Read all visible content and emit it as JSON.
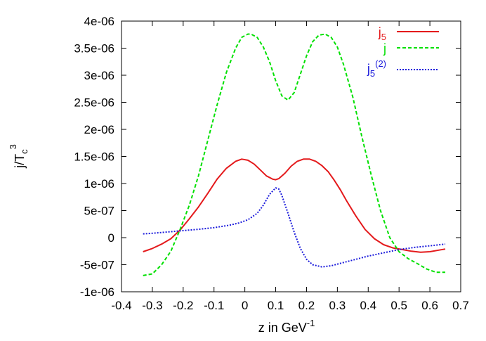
{
  "chart_data": {
    "type": "line",
    "xlabel": "z in GeV",
    "xlabel_sup": "-1",
    "ylabel": "j/T",
    "ylabel_sub": "c",
    "ylabel_sup": "3",
    "xlim": [
      -0.4,
      0.7
    ],
    "ylim": [
      -1e-06,
      4e-06
    ],
    "x_ticks": [
      {
        "value": -0.4,
        "label": "-0.4"
      },
      {
        "value": -0.3,
        "label": "-0.3"
      },
      {
        "value": -0.2,
        "label": "-0.2"
      },
      {
        "value": -0.1,
        "label": "-0.1"
      },
      {
        "value": 0,
        "label": "0"
      },
      {
        "value": 0.1,
        "label": "0.1"
      },
      {
        "value": 0.2,
        "label": "0.2"
      },
      {
        "value": 0.3,
        "label": "0.3"
      },
      {
        "value": 0.4,
        "label": "0.4"
      },
      {
        "value": 0.5,
        "label": "0.5"
      },
      {
        "value": 0.6,
        "label": "0.6"
      },
      {
        "value": 0.7,
        "label": "0.7"
      }
    ],
    "y_ticks": [
      {
        "value": -1e-06,
        "label": "-1e-06"
      },
      {
        "value": -5e-07,
        "label": "-5e-07"
      },
      {
        "value": 0,
        "label": "0"
      },
      {
        "value": 5e-07,
        "label": "5e-07"
      },
      {
        "value": 1e-06,
        "label": "1e-06"
      },
      {
        "value": 1.5e-06,
        "label": "1.5e-06"
      },
      {
        "value": 2e-06,
        "label": "2e-06"
      },
      {
        "value": 2.5e-06,
        "label": "2.5e-06"
      },
      {
        "value": 3e-06,
        "label": "3e-06"
      },
      {
        "value": 3.5e-06,
        "label": "3.5e-06"
      },
      {
        "value": 4e-06,
        "label": "4e-06"
      }
    ],
    "grid": false,
    "legend_position": "top-right",
    "series": [
      {
        "name": "j",
        "name_sub": "5",
        "name_sup": "",
        "color": "#e41a1c",
        "dash": "solid",
        "x": [
          -0.33,
          -0.3,
          -0.27,
          -0.24,
          -0.21,
          -0.18,
          -0.15,
          -0.12,
          -0.09,
          -0.06,
          -0.03,
          -0.01,
          0.01,
          0.03,
          0.05,
          0.07,
          0.09,
          0.1,
          0.11,
          0.13,
          0.15,
          0.17,
          0.19,
          0.21,
          0.23,
          0.25,
          0.27,
          0.29,
          0.31,
          0.33,
          0.36,
          0.39,
          0.42,
          0.45,
          0.48,
          0.51,
          0.54,
          0.57,
          0.6,
          0.63,
          0.65
        ],
        "y": [
          -2.6e-07,
          -2e-07,
          -1.2e-07,
          -2e-08,
          1.4e-07,
          3.5e-07,
          5.7e-07,
          8.2e-07,
          1.08e-06,
          1.28e-06,
          1.41e-06,
          1.45e-06,
          1.43e-06,
          1.36e-06,
          1.25e-06,
          1.14e-06,
          1.08e-06,
          1.07e-06,
          1.09e-06,
          1.19e-06,
          1.32e-06,
          1.41e-06,
          1.45e-06,
          1.45e-06,
          1.41e-06,
          1.33e-06,
          1.22e-06,
          1.06e-06,
          8.8e-07,
          6.8e-07,
          4e-07,
          1.5e-07,
          -2e-08,
          -1.3e-07,
          -1.9e-07,
          -2.2e-07,
          -2.5e-07,
          -2.7e-07,
          -2.6e-07,
          -2.3e-07,
          -2.1e-07
        ]
      },
      {
        "name": "j",
        "name_sub": "",
        "name_sup": "",
        "color": "#00e000",
        "dash": "5,3",
        "x": [
          -0.33,
          -0.3,
          -0.27,
          -0.24,
          -0.21,
          -0.18,
          -0.15,
          -0.12,
          -0.09,
          -0.06,
          -0.03,
          -0.01,
          0.01,
          0.02,
          0.04,
          0.06,
          0.08,
          0.1,
          0.12,
          0.14,
          0.16,
          0.18,
          0.2,
          0.22,
          0.24,
          0.26,
          0.28,
          0.3,
          0.32,
          0.35,
          0.38,
          0.41,
          0.44,
          0.47,
          0.5,
          0.53,
          0.56,
          0.59,
          0.62,
          0.65
        ],
        "y": [
          -7e-07,
          -6.7e-07,
          -5e-07,
          -2.5e-07,
          1.5e-07,
          6e-07,
          1.15e-06,
          1.8e-06,
          2.45e-06,
          3.05e-06,
          3.5e-06,
          3.7e-06,
          3.76e-06,
          3.76e-06,
          3.7e-06,
          3.52e-06,
          3.25e-06,
          2.9e-06,
          2.62e-06,
          2.54e-06,
          2.68e-06,
          3.02e-06,
          3.36e-06,
          3.62e-06,
          3.74e-06,
          3.76e-06,
          3.7e-06,
          3.52e-06,
          3.2e-06,
          2.6e-06,
          1.85e-06,
          1.15e-06,
          5e-07,
          0,
          -2.6e-07,
          -3.9e-07,
          -4.8e-07,
          -5.8e-07,
          -6.4e-07,
          -6.4e-07
        ]
      },
      {
        "name": "j",
        "name_sub": "5",
        "name_sup": "(2)",
        "color": "#1a1adb",
        "dash": "2,2",
        "x": [
          -0.33,
          -0.3,
          -0.25,
          -0.2,
          -0.15,
          -0.1,
          -0.05,
          -0.02,
          0.01,
          0.04,
          0.06,
          0.08,
          0.1,
          0.11,
          0.12,
          0.14,
          0.16,
          0.18,
          0.2,
          0.22,
          0.25,
          0.28,
          0.32,
          0.36,
          0.4,
          0.45,
          0.5,
          0.55,
          0.6,
          0.65
        ],
        "y": [
          7e-08,
          8e-08,
          1.05e-07,
          1.3e-07,
          1.55e-07,
          1.85e-07,
          2.3e-07,
          2.7e-07,
          3.3e-07,
          4.5e-07,
          6e-07,
          8e-07,
          9.2e-07,
          9e-07,
          7.8e-07,
          4.5e-07,
          1e-07,
          -2e-07,
          -4e-07,
          -5e-07,
          -5.4e-07,
          -5.2e-07,
          -4.6e-07,
          -4e-07,
          -3.4e-07,
          -2.8e-07,
          -2.2e-07,
          -1.8e-07,
          -1.5e-07,
          -1.2e-07
        ]
      }
    ]
  }
}
